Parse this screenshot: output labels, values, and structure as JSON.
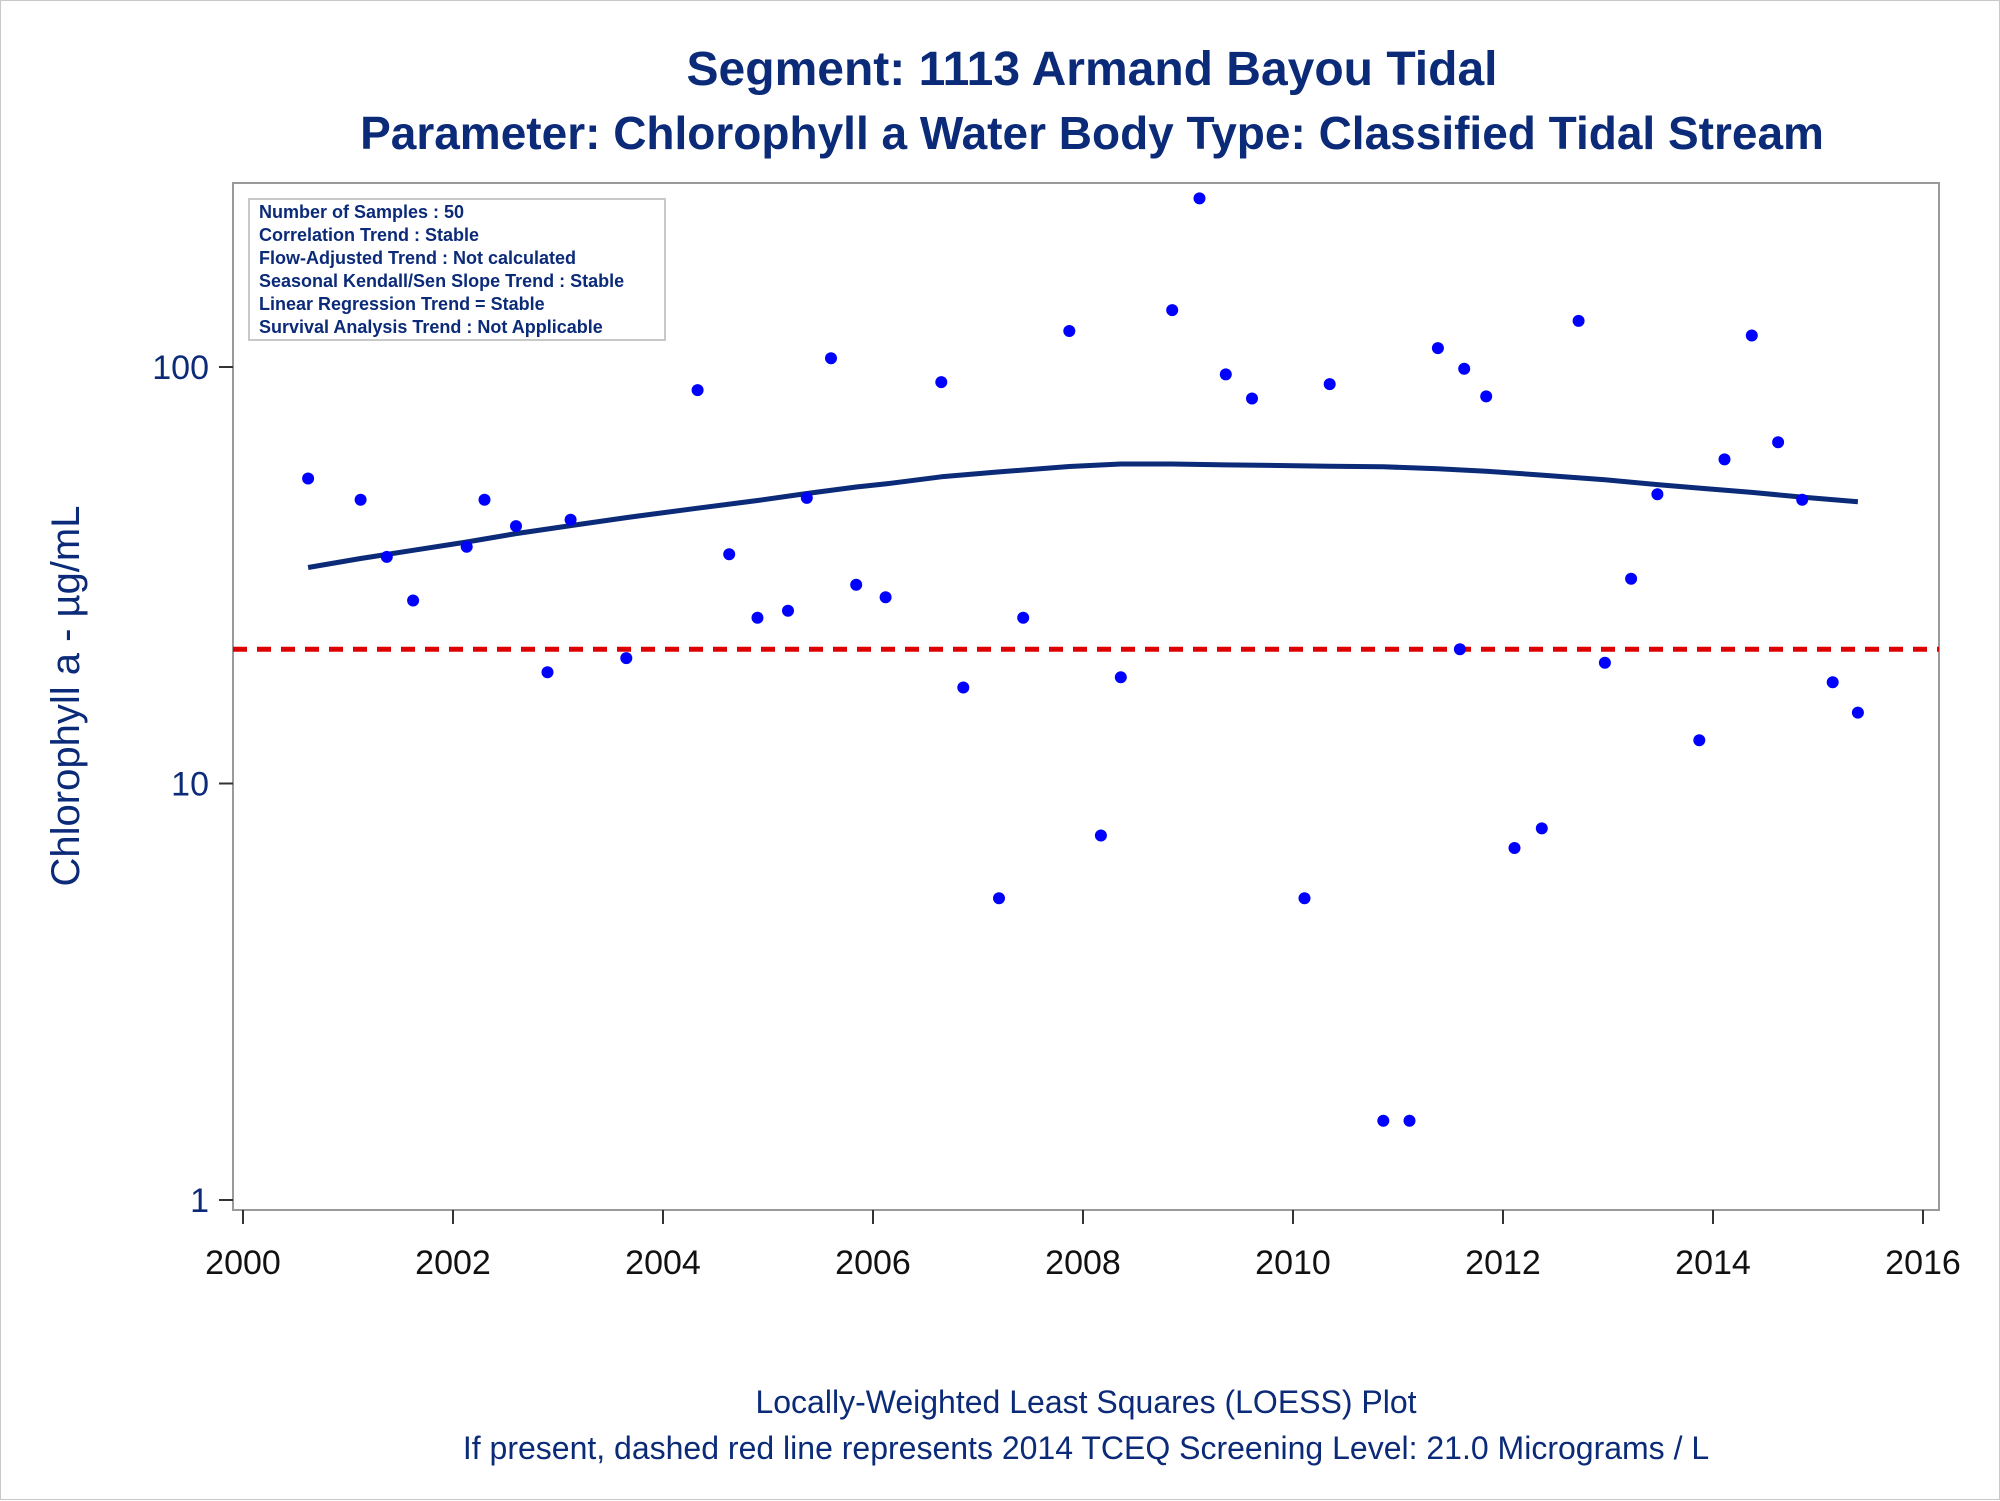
{
  "chart_data": {
    "type": "scatter",
    "title": "Segment: 1113  Armand Bayou Tidal",
    "subtitle": "Parameter: Chlorophyll a   Water Body Type: Classified Tidal Stream",
    "xlabel": "",
    "ylabel": "Chlorophyll a -  µg/mL",
    "xlim": [
      2000,
      2016
    ],
    "ylim": [
      0.95,
      250
    ],
    "yscale": "log",
    "x_ticks": [
      2000,
      2002,
      2004,
      2006,
      2008,
      2010,
      2012,
      2014,
      2016
    ],
    "y_ticks": [
      1,
      10,
      100
    ],
    "grid": false,
    "marker_color": "#0000ff",
    "stats_box": [
      "Number of Samples : 50",
      "Correlation Trend : Stable",
      "Flow-Adjusted Trend : Not calculated",
      "Seasonal Kendall/Sen Slope Trend : Stable",
      "Linear Regression Trend = Stable",
      "Survival Analysis Trend : Not Applicable"
    ],
    "series": [
      {
        "type": "scatter",
        "points": [
          [
            2000.62,
            54
          ],
          [
            2001.12,
            48
          ],
          [
            2001.37,
            35
          ],
          [
            2001.62,
            27.5
          ],
          [
            2002.13,
            37
          ],
          [
            2002.3,
            48
          ],
          [
            2002.6,
            41.5
          ],
          [
            2002.9,
            18.5
          ],
          [
            2003.12,
            43
          ],
          [
            2003.65,
            20
          ],
          [
            2004.33,
            88
          ],
          [
            2004.63,
            35.5
          ],
          [
            2004.9,
            25
          ],
          [
            2005.19,
            26
          ],
          [
            2005.37,
            48.5
          ],
          [
            2005.6,
            105
          ],
          [
            2005.84,
            30
          ],
          [
            2006.12,
            28
          ],
          [
            2006.65,
            92
          ],
          [
            2006.86,
            17
          ],
          [
            2007.2,
            5.3
          ],
          [
            2007.43,
            25
          ],
          [
            2007.87,
            122
          ],
          [
            2008.17,
            7.5
          ],
          [
            2008.36,
            18
          ],
          [
            2008.85,
            137
          ],
          [
            2009.11,
            254
          ],
          [
            2009.36,
            96
          ],
          [
            2009.61,
            84
          ],
          [
            2010.11,
            5.3
          ],
          [
            2010.35,
            91
          ],
          [
            2010.86,
            1.55
          ],
          [
            2011.11,
            1.55
          ],
          [
            2011.38,
            111
          ],
          [
            2011.59,
            21
          ],
          [
            2011.63,
            99
          ],
          [
            2011.84,
            85
          ],
          [
            2012.11,
            7
          ],
          [
            2012.37,
            7.8
          ],
          [
            2012.72,
            129
          ],
          [
            2012.97,
            19.5
          ],
          [
            2013.22,
            31
          ],
          [
            2013.47,
            49.5
          ],
          [
            2013.87,
            12.7
          ],
          [
            2014.11,
            60
          ],
          [
            2014.37,
            119
          ],
          [
            2014.62,
            66
          ],
          [
            2014.85,
            48
          ],
          [
            2015.14,
            17.5
          ],
          [
            2015.38,
            14.8
          ]
        ]
      },
      {
        "type": "line",
        "name": "LOESS",
        "color": "#0b2a78",
        "points": [
          [
            2000.62,
            33
          ],
          [
            2001.12,
            34.7
          ],
          [
            2001.62,
            36.3
          ],
          [
            2002.13,
            38
          ],
          [
            2002.6,
            39.8
          ],
          [
            2003.12,
            41.6
          ],
          [
            2003.65,
            43.5
          ],
          [
            2004.33,
            45.8
          ],
          [
            2004.9,
            47.8
          ],
          [
            2005.37,
            49.7
          ],
          [
            2005.84,
            51.5
          ],
          [
            2006.12,
            52.4
          ],
          [
            2006.65,
            54.5
          ],
          [
            2007.2,
            56
          ],
          [
            2007.87,
            57.7
          ],
          [
            2008.36,
            58.5
          ],
          [
            2008.85,
            58.5
          ],
          [
            2009.36,
            58.2
          ],
          [
            2009.86,
            58
          ],
          [
            2010.35,
            57.8
          ],
          [
            2010.86,
            57.6
          ],
          [
            2011.38,
            57
          ],
          [
            2011.84,
            56.2
          ],
          [
            2012.37,
            55
          ],
          [
            2012.97,
            53.6
          ],
          [
            2013.47,
            52.2
          ],
          [
            2013.87,
            51.2
          ],
          [
            2014.37,
            50
          ],
          [
            2014.85,
            48.7
          ],
          [
            2015.38,
            47.5
          ]
        ]
      },
      {
        "type": "hline",
        "name": "2014 TCEQ Screening Level",
        "y": 21,
        "color": "#dd0000",
        "dash": true
      }
    ],
    "footnotes": [
      "Locally-Weighted Least Squares (LOESS) Plot",
      "If present, dashed red line represents 2014 TCEQ Screening Level: 21.0 Micrograms / L"
    ]
  }
}
